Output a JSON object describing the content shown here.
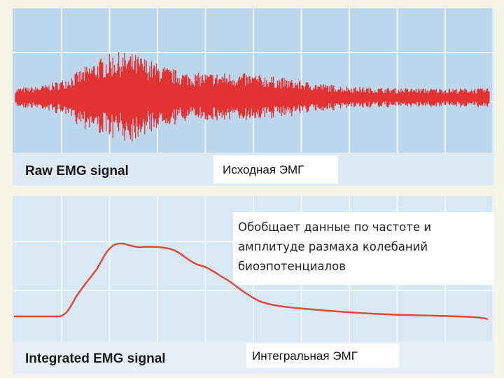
{
  "raw_panel": {
    "label": "Raw EMG signal",
    "caption": "Исходная ЭМГ"
  },
  "integrated_panel": {
    "label": "Integrated EMG signal",
    "note": [
      "Обобщает данные по частоте и",
      "амплитуде размаха колебаний",
      "биоэпотенциалов"
    ],
    "caption": "Интегральная ЭМГ"
  }
}
